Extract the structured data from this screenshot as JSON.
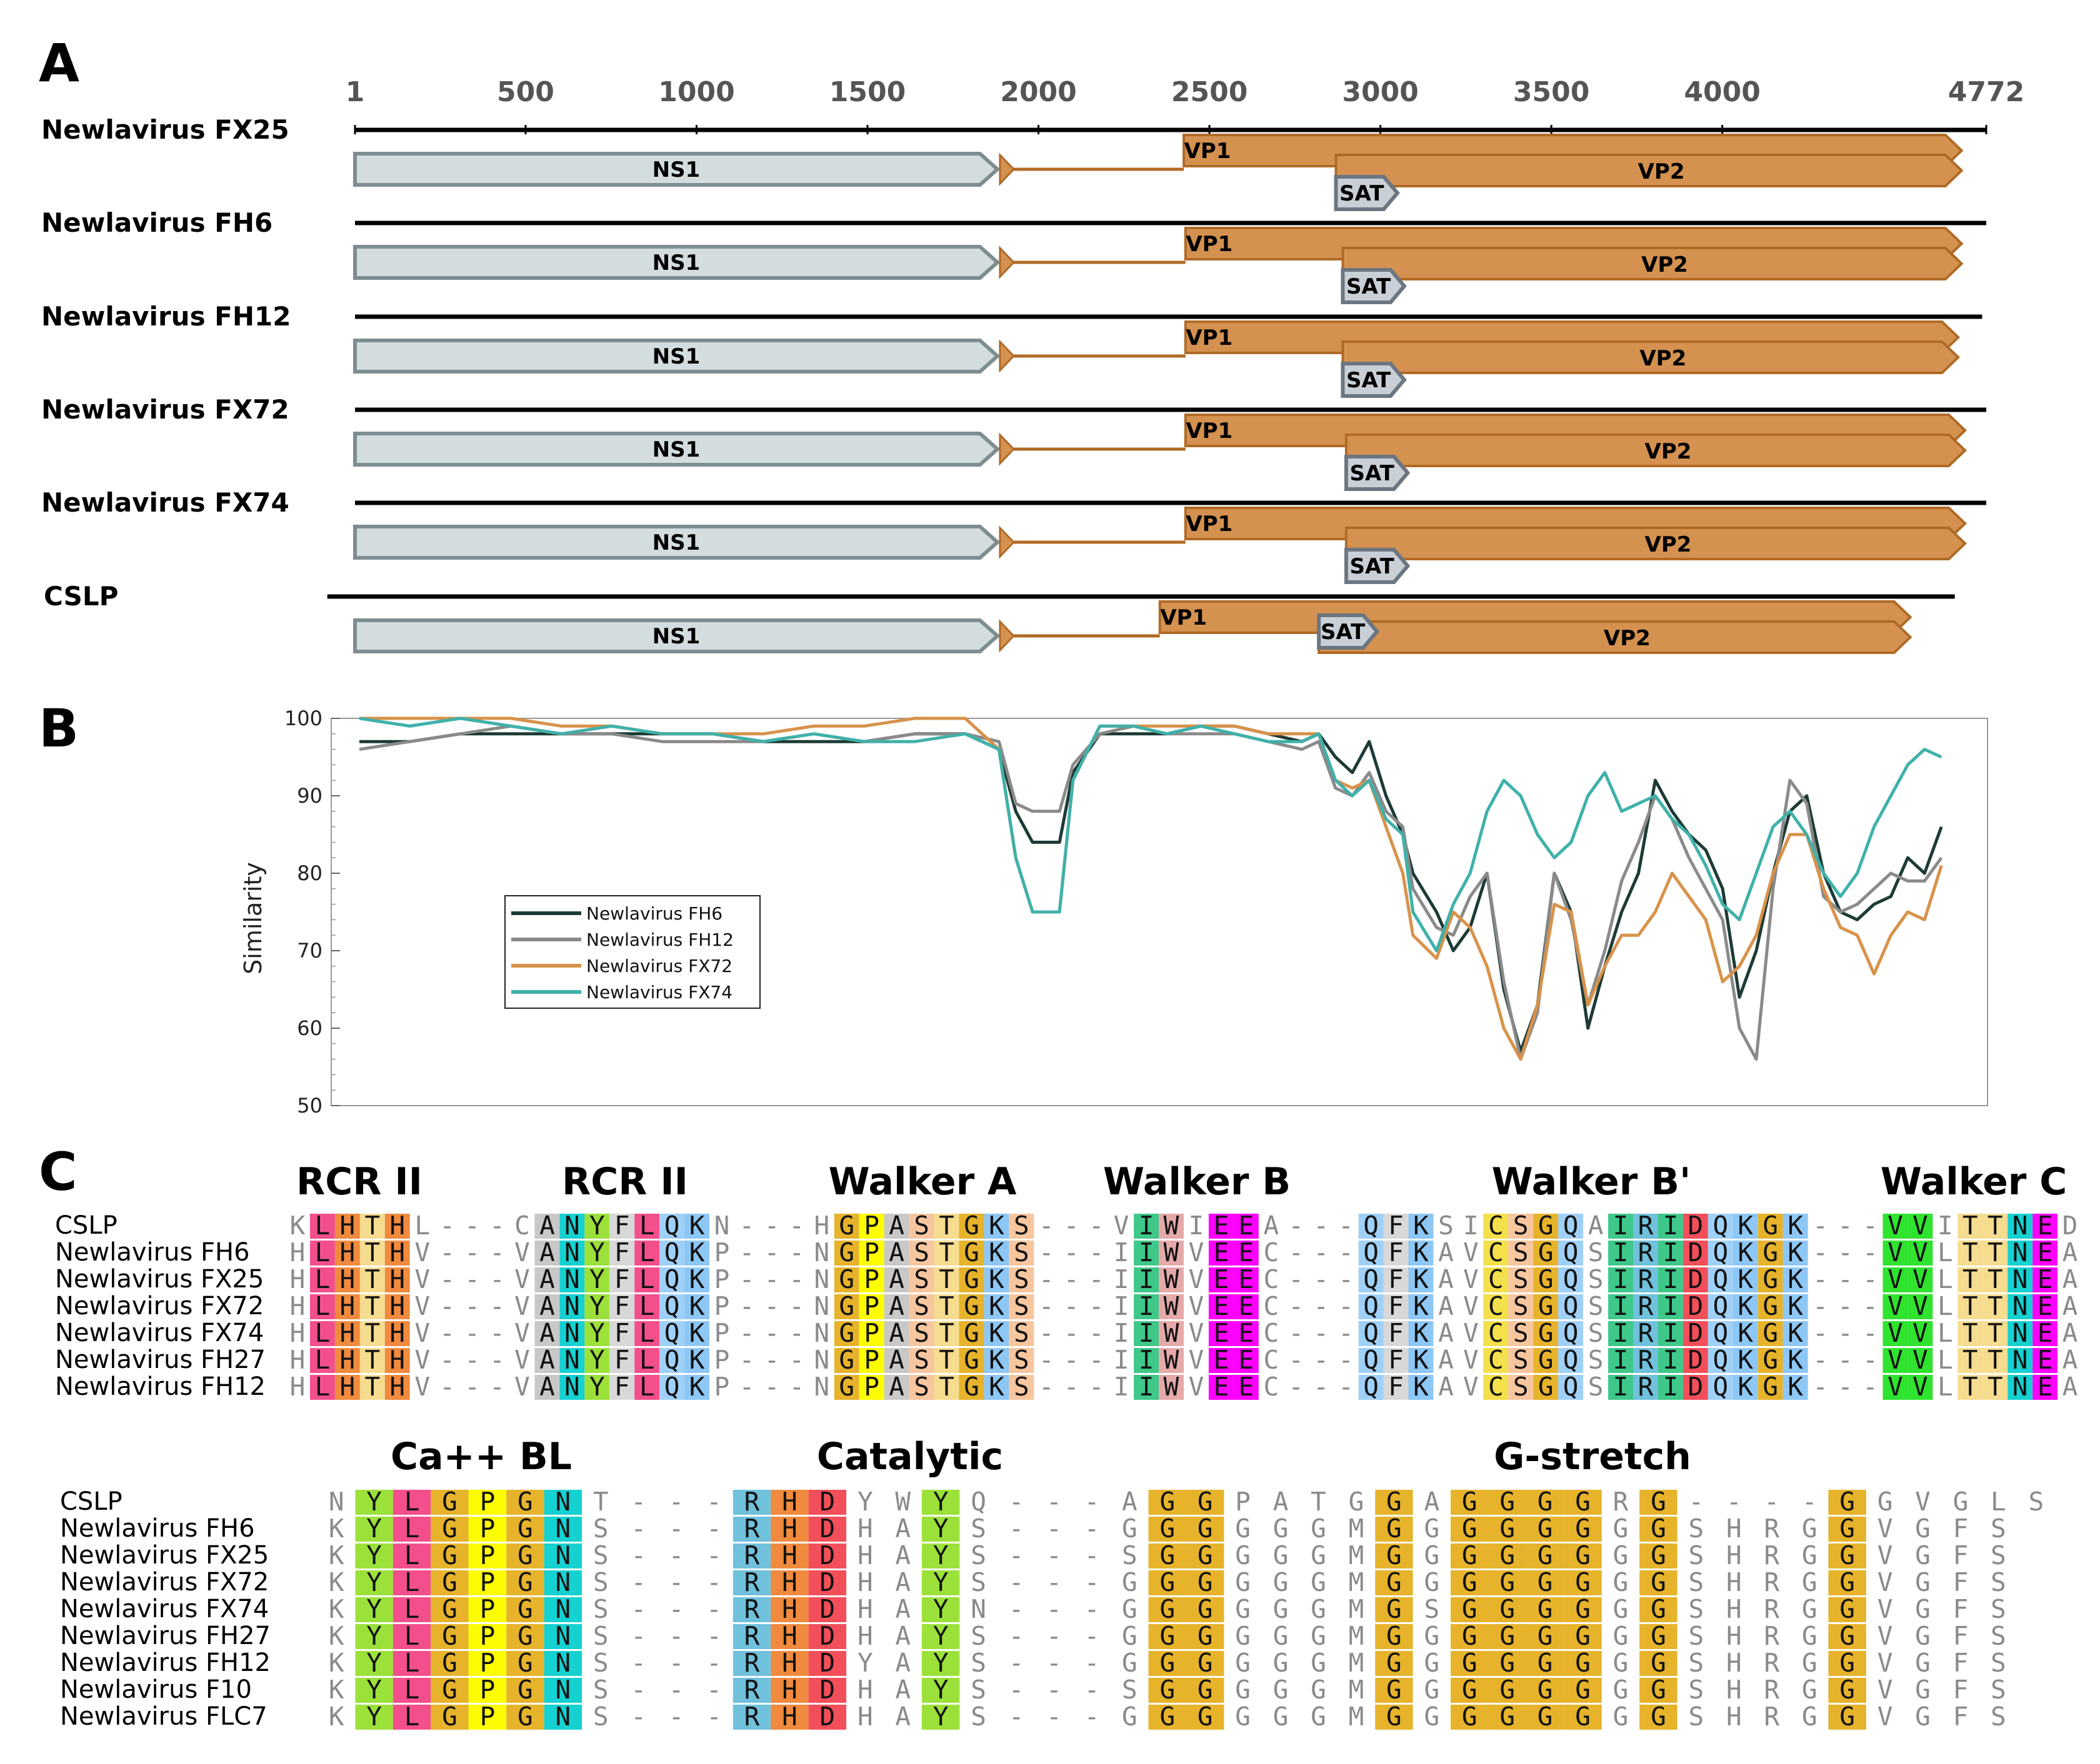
{
  "panels": {
    "a": "A",
    "b": "B",
    "c": "C"
  },
  "genome_map": {
    "ruler_ticks": [
      1,
      500,
      1000,
      1500,
      2000,
      2500,
      3000,
      3500,
      4000,
      4772
    ],
    "genomes": [
      {
        "name": "Newlavirus FX25",
        "ns1": [
          1,
          1880
        ],
        "vp1": [
          2425,
          4700
        ],
        "vp2": [
          2870,
          4700
        ],
        "sat": [
          2870,
          3050
        ],
        "line": [
          1,
          4772
        ]
      },
      {
        "name": "Newlavirus FH6",
        "ns1": [
          1,
          1880
        ],
        "vp1": [
          2430,
          4700
        ],
        "vp2": [
          2890,
          4700
        ],
        "sat": [
          2890,
          3070
        ],
        "line": [
          1,
          4772
        ]
      },
      {
        "name": "Newlavirus FH12",
        "ns1": [
          1,
          1880
        ],
        "vp1": [
          2430,
          4690
        ],
        "vp2": [
          2890,
          4690
        ],
        "sat": [
          2890,
          3070
        ],
        "line": [
          1,
          4760
        ]
      },
      {
        "name": "Newlavirus FX72",
        "ns1": [
          1,
          1880
        ],
        "vp1": [
          2430,
          4710
        ],
        "vp2": [
          2900,
          4710
        ],
        "sat": [
          2900,
          3080
        ],
        "line": [
          1,
          4772
        ]
      },
      {
        "name": "Newlavirus FX74",
        "ns1": [
          1,
          1880
        ],
        "vp1": [
          2430,
          4710
        ],
        "vp2": [
          2900,
          4710
        ],
        "sat": [
          2900,
          3080
        ],
        "line": [
          1,
          4772
        ]
      },
      {
        "name": "CSLP",
        "ns1": [
          1,
          1880
        ],
        "vp1": [
          2355,
          4550
        ],
        "vp2": [
          2820,
          4550
        ],
        "sat": [
          2820,
          2990
        ],
        "line": [
          -80,
          4680
        ]
      }
    ],
    "labels": {
      "ns1": "NS1",
      "vp1": "VP1",
      "vp2": "VP2",
      "sat": "SAT"
    },
    "colors": {
      "ns1_fill": "#d3dde0",
      "ns1_stroke": "#7d8d91",
      "vp_fill": "#d4914f",
      "vp_stroke": "#b06a26",
      "sat_fill": "#c9cfd6",
      "sat_stroke": "#6c7680"
    }
  },
  "chart_data": {
    "type": "line",
    "xlabel": "",
    "ylabel": "Similarity",
    "ylim": [
      50,
      100
    ],
    "yticks": [
      50,
      60,
      70,
      80,
      90,
      100
    ],
    "xlim": [
      0,
      4772
    ],
    "legend": "left",
    "series": [
      {
        "name": "Newlavirus FH6",
        "color": "#1d3b36",
        "x": [
          0,
          150,
          300,
          450,
          600,
          750,
          900,
          1050,
          1200,
          1350,
          1500,
          1650,
          1800,
          1900,
          1950,
          2000,
          2080,
          2120,
          2200,
          2300,
          2400,
          2500,
          2600,
          2700,
          2800,
          2850,
          2900,
          2950,
          3000,
          3050,
          3100,
          3130,
          3200,
          3250,
          3300,
          3350,
          3400,
          3450,
          3500,
          3550,
          3600,
          3650,
          3700,
          3750,
          3800,
          3850,
          3900,
          3950,
          4000,
          4050,
          4100,
          4150,
          4200,
          4250,
          4300,
          4350,
          4400,
          4450,
          4500,
          4550,
          4600,
          4650,
          4700
        ],
        "values": [
          97,
          97,
          98,
          98,
          98,
          98,
          98,
          98,
          97,
          97,
          97,
          98,
          98,
          96,
          88,
          84,
          84,
          93,
          98,
          98,
          98,
          99,
          99,
          98,
          97,
          98,
          95,
          93,
          97,
          90,
          85,
          80,
          75,
          70,
          73,
          80,
          65,
          57,
          63,
          80,
          75,
          60,
          68,
          75,
          80,
          92,
          88,
          85,
          83,
          78,
          64,
          70,
          80,
          88,
          90,
          80,
          75,
          74,
          76,
          77,
          82,
          80,
          86
        ]
      },
      {
        "name": "Newlavirus FH12",
        "color": "#8a8a8a",
        "x": [
          0,
          150,
          300,
          450,
          600,
          750,
          900,
          1050,
          1200,
          1350,
          1500,
          1650,
          1800,
          1900,
          1950,
          2000,
          2080,
          2120,
          2200,
          2300,
          2400,
          2500,
          2600,
          2700,
          2800,
          2850,
          2900,
          2950,
          3000,
          3050,
          3100,
          3130,
          3200,
          3250,
          3300,
          3350,
          3400,
          3450,
          3500,
          3550,
          3600,
          3650,
          3700,
          3750,
          3800,
          3850,
          3900,
          3950,
          4000,
          4050,
          4100,
          4150,
          4200,
          4250,
          4300,
          4350,
          4400,
          4450,
          4500,
          4550,
          4600,
          4650,
          4700
        ],
        "values": [
          96,
          97,
          98,
          99,
          98,
          98,
          97,
          97,
          97,
          98,
          97,
          98,
          98,
          97,
          89,
          88,
          88,
          94,
          98,
          99,
          98,
          98,
          98,
          97,
          96,
          97,
          91,
          90,
          93,
          88,
          86,
          78,
          73,
          72,
          77,
          80,
          66,
          56,
          62,
          80,
          74,
          63,
          70,
          79,
          84,
          90,
          87,
          82,
          78,
          74,
          60,
          56,
          78,
          92,
          89,
          77,
          75,
          76,
          78,
          80,
          79,
          79,
          82
        ]
      },
      {
        "name": "Newlavirus FX72",
        "color": "#d8924a",
        "x": [
          0,
          150,
          300,
          450,
          600,
          750,
          900,
          1050,
          1200,
          1350,
          1500,
          1650,
          1800,
          1900,
          1950,
          2000,
          2080,
          2120,
          2200,
          2300,
          2400,
          2500,
          2600,
          2700,
          2800,
          2850,
          2900,
          2950,
          3000,
          3050,
          3100,
          3130,
          3200,
          3250,
          3300,
          3350,
          3400,
          3450,
          3500,
          3550,
          3600,
          3650,
          3700,
          3750,
          3800,
          3850,
          3900,
          3950,
          4000,
          4050,
          4100,
          4150,
          4200,
          4250,
          4300,
          4350,
          4400,
          4450,
          4500,
          4550,
          4600,
          4650,
          4700
        ],
        "values": [
          100,
          100,
          100,
          100,
          99,
          99,
          98,
          98,
          98,
          99,
          99,
          100,
          100,
          96,
          82,
          75,
          75,
          92,
          99,
          99,
          99,
          99,
          99,
          98,
          98,
          98,
          92,
          91,
          92,
          86,
          80,
          72,
          69,
          75,
          73,
          68,
          60,
          56,
          63,
          76,
          75,
          63,
          68,
          72,
          72,
          75,
          80,
          77,
          74,
          66,
          68,
          72,
          80,
          85,
          85,
          78,
          73,
          72,
          67,
          72,
          75,
          74,
          81
        ]
      },
      {
        "name": "Newlavirus FX74",
        "color": "#3fb1aa",
        "x": [
          0,
          150,
          300,
          450,
          600,
          750,
          900,
          1050,
          1200,
          1350,
          1500,
          1650,
          1800,
          1900,
          1950,
          2000,
          2080,
          2120,
          2200,
          2300,
          2400,
          2500,
          2600,
          2700,
          2800,
          2850,
          2900,
          2950,
          3000,
          3050,
          3100,
          3130,
          3200,
          3250,
          3300,
          3350,
          3400,
          3450,
          3500,
          3550,
          3600,
          3650,
          3700,
          3750,
          3800,
          3850,
          3900,
          3950,
          4000,
          4050,
          4100,
          4150,
          4200,
          4250,
          4300,
          4350,
          4400,
          4450,
          4500,
          4550,
          4600,
          4650,
          4700
        ],
        "values": [
          100,
          99,
          100,
          99,
          98,
          99,
          98,
          98,
          97,
          98,
          97,
          97,
          98,
          96,
          82,
          75,
          75,
          92,
          99,
          99,
          98,
          99,
          98,
          97,
          97,
          98,
          92,
          90,
          92,
          87,
          85,
          75,
          70,
          76,
          80,
          88,
          92,
          90,
          85,
          82,
          84,
          90,
          93,
          88,
          89,
          90,
          87,
          85,
          81,
          76,
          74,
          80,
          86,
          88,
          85,
          80,
          77,
          80,
          86,
          90,
          94,
          96,
          95
        ]
      }
    ]
  },
  "alignment1": {
    "motifs": [
      "RCR II",
      "RCR II",
      "Walker A",
      "Walker B",
      "Walker B'",
      "Walker C"
    ],
    "names": [
      "CSLP",
      "Newlavirus FH6",
      "Newlavirus FX25",
      "Newlavirus FX72",
      "Newlavirus FX74",
      "Newlavirus FH27",
      "Newlavirus FH12"
    ],
    "seqs": [
      "KLHTHL---CANYFLQKN---HGPASTGKS---VIWIEEA---QFKSICSGQAIRIDQKGK---VVITTNED",
      "HLHTHV---VANYFLQKP---NGPASTGKS---IIWVEEC---QFKAVCSGQSIRIDQKGK---VVLTTNEA",
      "HLHTHV---VANYFLQKP---NGPASTGKS---IIWVEEC---QFKAVCSGQSIRIDQKGK---VVLTTNEA",
      "HLHTHV---VANYFLQKP---NGPASTGKS---IIWVEEC---QFKAVCSGQSIRIDQKGK---VVLTTNEA",
      "HLHTHV---VANYFLQKP---NGPASTGKS---IIWVEEC---QFKAVCSGQSIRIDQKGK---VVLTTNEA",
      "HLHTHV---VANYFLQKP---NGPASTGKS---IIWVEEC---QFKAVCSGQSIRIDQKGK---VVLTTNEA",
      "HLHTHV---VANYFLQKP---NGPASTGKS---IIWVEEC---QFKAVCSGQSIRIDQKGK---VVLTTNEA"
    ]
  },
  "alignment2": {
    "motifs": [
      "Ca++ BL",
      "Catalytic",
      "G-stretch"
    ],
    "names": [
      "CSLP",
      "Newlavirus FH6",
      "Newlavirus FX25",
      "Newlavirus FX72",
      "Newlavirus FX74",
      "Newlavirus FH27",
      "Newlavirus FH12",
      "Newlavirus F10",
      "Newlavirus FLC7"
    ],
    "seqs": [
      "NYLGPGNT---RHDYWYQ---AGGPATGGAGGGGRG----GGVGLS",
      "KYLGPGNS---RHDHAYS---GGGGGGMGGGGGGGGSHRGGVGFS",
      "KYLGPGNS---RHDHAYS---SGGGGGMGGGGGGGGSHRGGVGFS",
      "KYLGPGNS---RHDHAYS---GGGGGGMGGGGGGGGSHRGGVGFS",
      "KYLGPGNS---RHDHAYN---GGGGGGMGSGGGGGGSHRGGVGFS",
      "KYLGPGNS---RHDHAYS---GGGGGGMGGGGGGGGSHRGGVGFS",
      "KYLGPGNS---RHDYAYS---GGGGGGMGGGGGGGGSHRGGVGFS",
      "KYLGPGNS---RHDHAYS---SGGGGGMGGGGGGGGSHRGGVGFS",
      "KYLGPGNS---RHDHAYS---GGGGGGMGGGGGGGGSHRGGVGFS"
    ]
  }
}
